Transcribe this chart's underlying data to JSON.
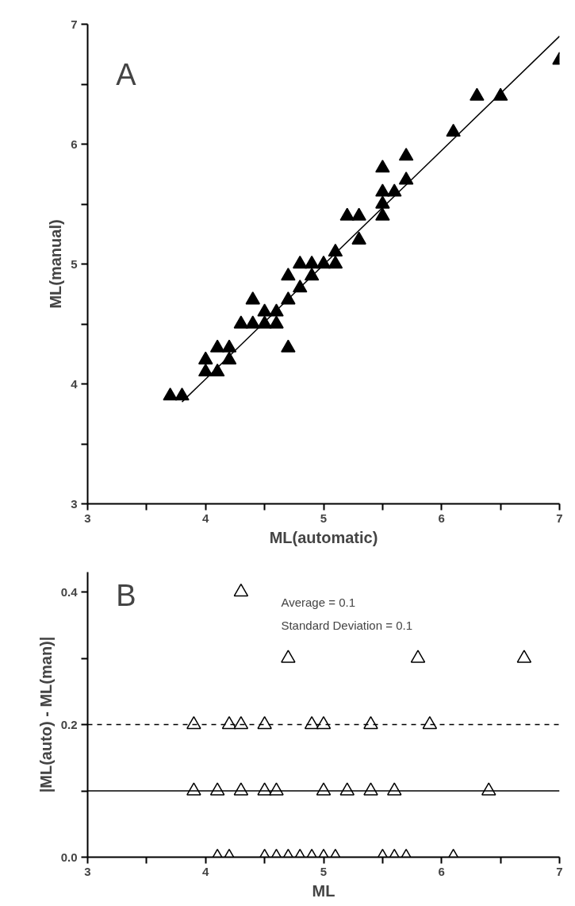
{
  "chart_data": [
    {
      "type": "scatter",
      "xlabel": "ML(automatic)",
      "ylabel": "ML(manual)",
      "annotations": [
        "A"
      ],
      "marker": "triangle",
      "grid": false,
      "xlim": [
        3,
        7
      ],
      "ylim": [
        3,
        7
      ],
      "xticks": [
        3,
        {
          "value": 3.5,
          "label": null
        },
        4,
        {
          "value": 4.5,
          "label": null
        },
        5,
        {
          "value": 5.5,
          "label": null
        },
        6,
        {
          "value": 6.5,
          "label": null
        },
        7
      ],
      "yticks": [
        3,
        {
          "value": 3.5,
          "label": null
        },
        4,
        {
          "value": 4.5,
          "label": null
        },
        5,
        {
          "value": 5.5,
          "label": null
        },
        6,
        {
          "value": 6.5,
          "label": null
        },
        7
      ],
      "series": [
        {
          "color": "#000000",
          "x": [
            3.7,
            3.8,
            4.0,
            4.0,
            4.1,
            4.1,
            4.2,
            4.2,
            4.3,
            4.4,
            4.4,
            4.5,
            4.5,
            4.6,
            4.6,
            4.7,
            4.7,
            4.7,
            4.8,
            4.8,
            4.9,
            4.9,
            5.0,
            5.1,
            5.1,
            5.2,
            5.3,
            5.3,
            5.5,
            5.5,
            5.5,
            5.5,
            5.6,
            5.7,
            5.7,
            6.1,
            6.3,
            6.5,
            7.0
          ],
          "values": [
            3.9,
            3.9,
            4.2,
            4.1,
            4.3,
            4.1,
            4.3,
            4.2,
            4.5,
            4.7,
            4.5,
            4.6,
            4.5,
            4.6,
            4.5,
            4.3,
            4.7,
            4.9,
            5.0,
            4.8,
            5.0,
            4.9,
            5.0,
            5.1,
            5.0,
            5.4,
            5.4,
            5.2,
            5.8,
            5.6,
            5.5,
            5.4,
            5.6,
            5.9,
            5.7,
            6.1,
            6.4,
            6.4,
            6.7
          ]
        },
        {
          "type": "line",
          "marker": "none",
          "color": "#000000",
          "x": [
            3.8,
            7.0
          ],
          "values": [
            3.85,
            6.9
          ]
        }
      ]
    },
    {
      "type": "scatter",
      "xlabel": "ML",
      "ylabel": "|ML(auto) - ML(man)|",
      "annotations": [
        "B",
        "Average = 0.1",
        "Standard Deviation = 0.1"
      ],
      "marker": "triangle",
      "grid": false,
      "xlim": [
        3,
        7
      ],
      "ylim": [
        0,
        0.43
      ],
      "xticks": [
        3,
        {
          "value": 3.5,
          "label": null
        },
        4,
        {
          "value": 4.5,
          "label": null
        },
        5,
        {
          "value": 5.5,
          "label": null
        },
        6,
        {
          "value": 6.5,
          "label": null
        },
        7
      ],
      "yticks": [
        {
          "value": 0,
          "label": "0.0"
        },
        {
          "value": 0.1,
          "label": null
        },
        0.2,
        {
          "value": 0.3,
          "label": null
        },
        0.4
      ],
      "ref_lines": [
        {
          "axis": "y",
          "value": 0.1,
          "line_style": "solid",
          "color": "#000000"
        },
        {
          "axis": "y",
          "value": 0.2,
          "line_style": "dashed",
          "color": "#000000"
        }
      ],
      "series": [
        {
          "color": "#000000",
          "x": [
            4.3,
            4.7,
            5.8,
            6.7,
            3.9,
            4.2,
            4.3,
            4.5,
            4.9,
            5.0,
            5.4,
            5.9,
            3.9,
            4.1,
            4.3,
            4.5,
            4.6,
            5.0,
            5.2,
            5.4,
            5.6,
            6.4,
            4.1,
            4.2,
            4.5,
            4.6,
            4.7,
            4.8,
            4.9,
            5.0,
            5.1,
            5.5,
            5.6,
            5.7,
            6.1
          ],
          "values": [
            0.4,
            0.3,
            0.3,
            0.3,
            0.2,
            0.2,
            0.2,
            0.2,
            0.2,
            0.2,
            0.2,
            0.2,
            0.1,
            0.1,
            0.1,
            0.1,
            0.1,
            0.1,
            0.1,
            0.1,
            0.1,
            0.1,
            0,
            0,
            0,
            0,
            0,
            0,
            0,
            0,
            0,
            0,
            0,
            0,
            0
          ]
        }
      ]
    }
  ]
}
